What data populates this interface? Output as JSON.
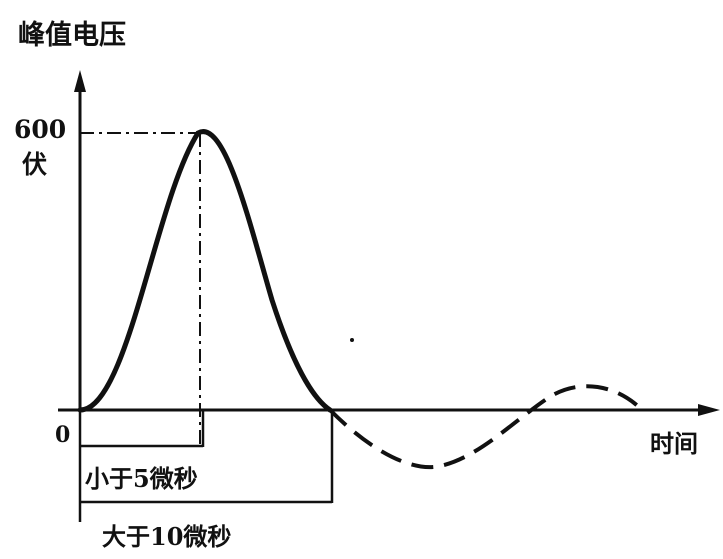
{
  "title": "峰值电压",
  "peak_value": "600",
  "peak_unit": "伏",
  "origin_label": "0",
  "x_axis_label": "时间",
  "rise_time_label": "小于5微秒",
  "fall_time_label": "大于10微秒",
  "colors": {
    "ink": "#111111",
    "background": "#ffffff"
  }
}
